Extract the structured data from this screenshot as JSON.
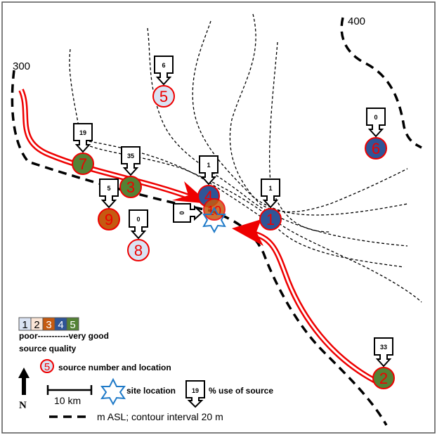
{
  "contours": {
    "label_low": "300",
    "label_high": "400"
  },
  "quality_colors": {
    "1": "#dae3f3",
    "2": "#fbe5d6",
    "3": "#c55a11",
    "4": "#2f5597",
    "5": "#548235"
  },
  "sources": [
    {
      "number": "1",
      "quality": 4,
      "use": "1"
    },
    {
      "number": "2",
      "quality": 5,
      "use": "33"
    },
    {
      "number": "3",
      "quality": 5,
      "use": "35"
    },
    {
      "number": "4",
      "quality": 4,
      "use": "1"
    },
    {
      "number": "5",
      "quality": 1,
      "use": "6"
    },
    {
      "number": "6",
      "quality": 4,
      "use": "0"
    },
    {
      "number": "7",
      "quality": 5,
      "use": "19"
    },
    {
      "number": "8",
      "quality": 1,
      "use": "0"
    },
    {
      "number": "9",
      "quality": 3,
      "use": "5"
    },
    {
      "number": "10",
      "quality": 3,
      "use": "0"
    }
  ],
  "legend": {
    "scale_items": [
      "1",
      "2",
      "3",
      "4",
      "5"
    ],
    "quality_range": "poor-----------very good",
    "quality_title": "source quality",
    "source_example": "5",
    "source_label": "source number and location",
    "north": "N",
    "scale_bar": "10 km",
    "site_label": "site location",
    "use_example": "19",
    "use_label": "% use of source",
    "contour_label": "m ASL; contour interval 20 m"
  }
}
